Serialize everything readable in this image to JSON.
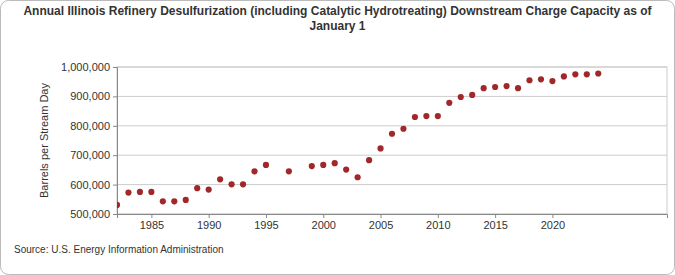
{
  "chart_data": {
    "type": "scatter",
    "title": "Annual Illinois Refinery Desulfurization (including Catalytic Hydrotreating) Downstream Charge Capacity as of January 1",
    "y_label": "Barrels per Stream Day",
    "source": "Source: U.S. Energy Information Administration",
    "x": [
      1982,
      1983,
      1984,
      1985,
      1986,
      1987,
      1988,
      1989,
      1990,
      1991,
      1992,
      1993,
      1994,
      1995,
      1997,
      1999,
      2000,
      2001,
      2002,
      2003,
      2004,
      2005,
      2006,
      2007,
      2008,
      2009,
      2010,
      2011,
      2012,
      2013,
      2014,
      2015,
      2016,
      2017,
      2018,
      2019,
      2020,
      2021,
      2022,
      2023,
      2024
    ],
    "values": [
      531000,
      573000,
      575000,
      575000,
      543000,
      543000,
      548000,
      588000,
      583000,
      618000,
      601000,
      601000,
      645000,
      667000,
      645000,
      663000,
      667000,
      673000,
      651000,
      625000,
      683000,
      723000,
      773000,
      790000,
      830000,
      833000,
      833000,
      878000,
      898000,
      905000,
      928000,
      932000,
      935000,
      928000,
      955000,
      958000,
      952000,
      968000,
      975000,
      975000,
      978000
    ],
    "color": "#a0282a",
    "marker": "circle",
    "xlim": [
      1982,
      2030
    ],
    "xticks": [
      1985,
      1990,
      1995,
      2000,
      2005,
      2010,
      2015,
      2020
    ],
    "ylim": [
      500000,
      1000000
    ],
    "yticks": [
      {
        "value": 500000,
        "label": "500,000"
      },
      {
        "value": 600000,
        "label": "600,000"
      },
      {
        "value": 700000,
        "label": "700,000"
      },
      {
        "value": 800000,
        "label": "800,000"
      },
      {
        "value": 900000,
        "label": "900,000"
      },
      {
        "value": 1000000,
        "label": "1,000,000"
      }
    ],
    "grid": true
  }
}
